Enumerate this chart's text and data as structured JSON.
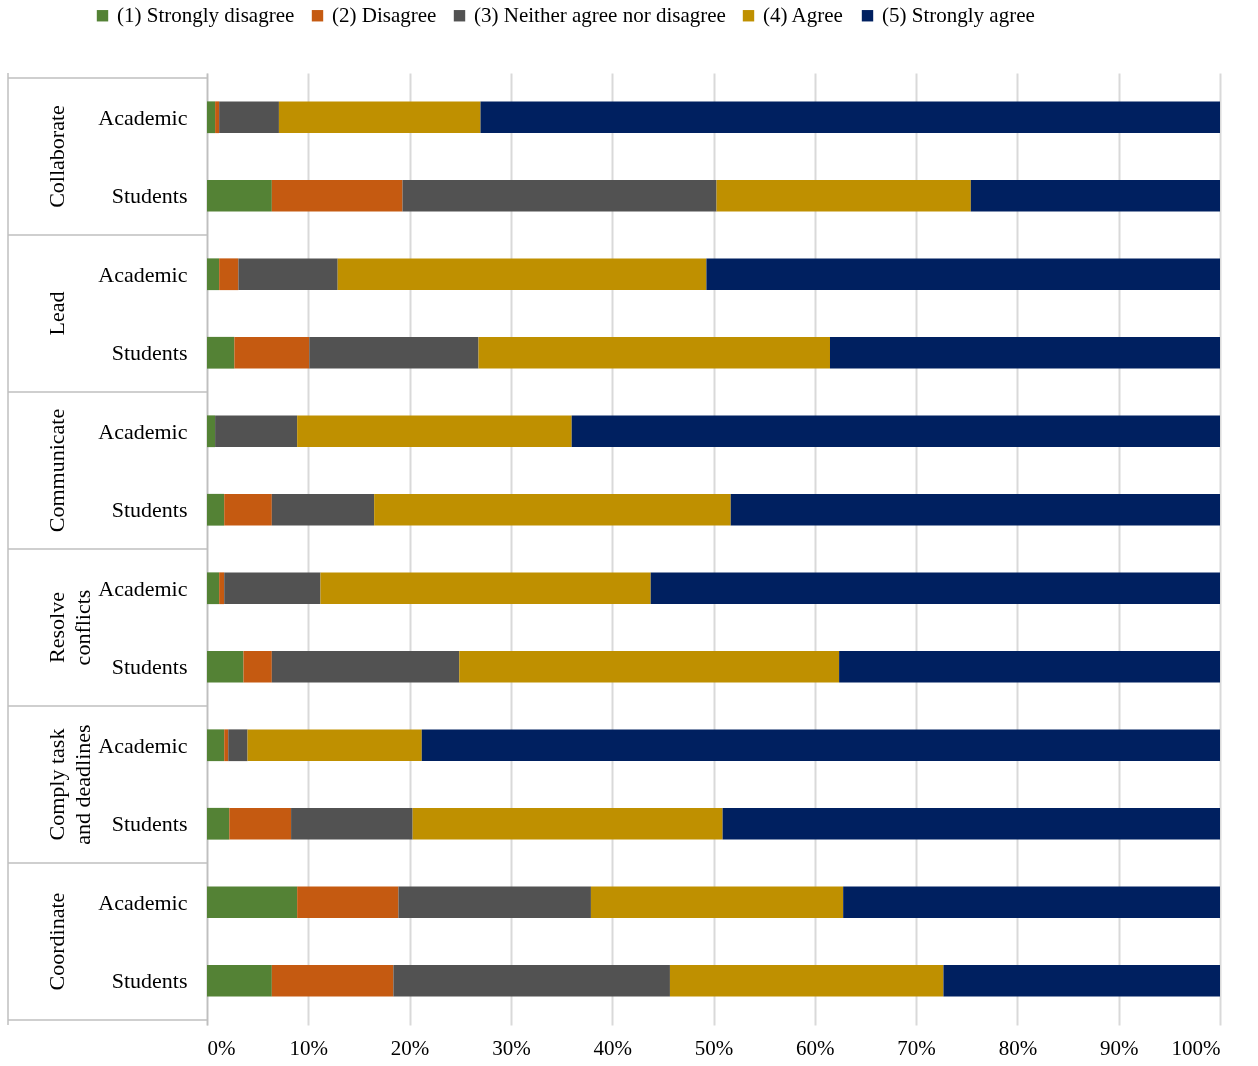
{
  "chart_data": {
    "type": "bar",
    "orientation": "horizontal",
    "stacked": true,
    "categories": [
      "Academic",
      "Students",
      "Academic",
      "Students",
      "Academic",
      "Students",
      "Academic",
      "Students",
      "Academic",
      "Students",
      "Academic",
      "Students"
    ],
    "annotations": [
      "Collaborate",
      "Lead",
      "Communicate",
      "Resolve conflicts",
      "Comply task and deadlines",
      "Coordinate"
    ],
    "series": [
      {
        "name": "(1) Strongly disagree",
        "color": "#548235",
        "values": [
          0.8,
          6.4,
          1.2,
          2.7,
          0.8,
          1.7,
          1.2,
          3.6,
          1.7,
          2.2,
          8.9,
          6.4
        ]
      },
      {
        "name": "(2) Disagree",
        "color": "#c55a11",
        "values": [
          0.4,
          12.9,
          1.9,
          7.4,
          0,
          4.7,
          0.5,
          2.8,
          0.4,
          6.1,
          10.0,
          12.0
        ]
      },
      {
        "name": "(3) Neither agree nor disagree",
        "color": "#525252",
        "values": [
          5.9,
          31.0,
          9.8,
          16.7,
          8.1,
          10.1,
          9.5,
          18.5,
          1.9,
          12.0,
          19.0,
          27.3
        ]
      },
      {
        "name": "(4) Agree",
        "color": "#bf9000",
        "values": [
          19.9,
          25.1,
          36.4,
          34.7,
          27.1,
          35.2,
          32.6,
          37.5,
          17.2,
          30.6,
          24.9,
          27.0
        ]
      },
      {
        "name": "(5) Strongly agree",
        "color": "#002060",
        "values": [
          73.0,
          24.6,
          50.7,
          38.5,
          64.0,
          48.3,
          56.2,
          37.6,
          78.8,
          49.1,
          37.2,
          27.3
        ]
      }
    ],
    "xlim": [
      0,
      100
    ],
    "xticks": [
      {
        "value": 0,
        "label": "0%"
      },
      {
        "value": 10,
        "label": "10%"
      },
      {
        "value": 20,
        "label": "20%"
      },
      {
        "value": 30,
        "label": "30%"
      },
      {
        "value": 40,
        "label": "40%"
      },
      {
        "value": 50,
        "label": "50%"
      },
      {
        "value": 60,
        "label": "60%"
      },
      {
        "value": 70,
        "label": "70%"
      },
      {
        "value": 80,
        "label": "80%"
      },
      {
        "value": 90,
        "label": "90%"
      },
      {
        "value": 100,
        "label": "100%"
      }
    ],
    "grid": "x",
    "legend": "top"
  }
}
